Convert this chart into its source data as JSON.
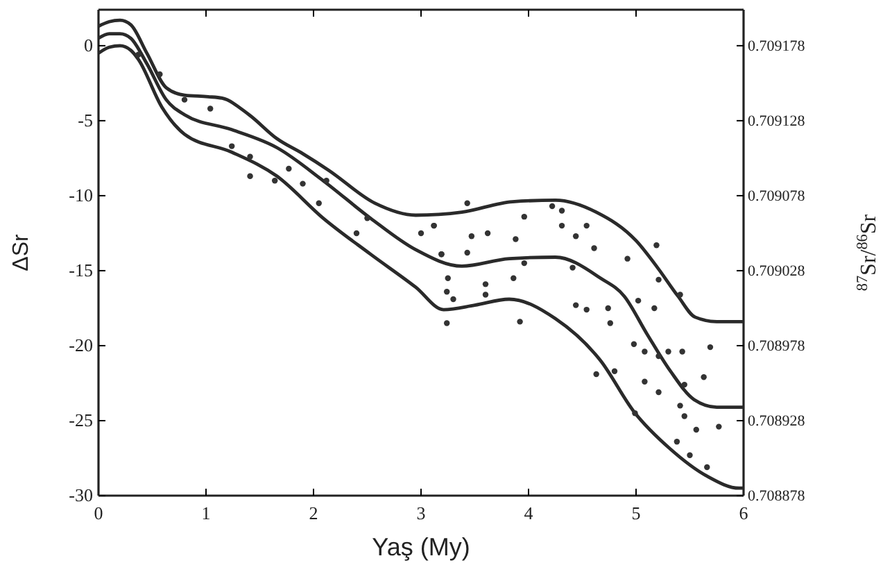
{
  "chart_data": {
    "type": "line",
    "xlabel": "Yaş (My)",
    "ylabel": "ΔSr",
    "y2label": "$^{87}$Sr/$^{86}$Sr",
    "xlim": [
      0,
      6
    ],
    "xticks": [
      0,
      1,
      2,
      3,
      4,
      5,
      6
    ],
    "ylim": [
      -30,
      2.4
    ],
    "yticks": [
      -30,
      -25,
      -20,
      -15,
      -10,
      -5,
      0
    ],
    "y2lim": [
      0.708878,
      0.709202
    ],
    "y2ticks": [
      0.708878,
      0.708928,
      0.708978,
      0.709028,
      0.709078,
      0.709128,
      0.709178
    ],
    "grid": false,
    "line_style": "solid",
    "series": [
      {
        "color": "#2a2a2a",
        "x": [
          0,
          0.1,
          0.2,
          0.3,
          0.45,
          0.63,
          0.8,
          1.02,
          1.15,
          1.4,
          1.66,
          1.9,
          2.14,
          2.57,
          2.95,
          3.38,
          3.85,
          4.25,
          4.63,
          5.0,
          5.2,
          5.39,
          5.55,
          5.75,
          6
        ],
        "values": [
          1.3,
          1.6,
          1.7,
          1.4,
          -0.5,
          -2.8,
          -3.3,
          -3.4,
          -3.5,
          -4.6,
          -6.2,
          -7.2,
          -8.3,
          -10.5,
          -11.3,
          -11.1,
          -10.4,
          -10.3,
          -11.1,
          -13,
          -14.8,
          -16.7,
          -18.1,
          -18.4,
          -18.4
        ]
      },
      {
        "color": "#2a2a2a",
        "x": [
          0,
          0.1,
          0.2,
          0.3,
          0.45,
          0.63,
          0.8,
          1.24,
          1.66,
          2.09,
          2.53,
          2.95,
          3.38,
          3.82,
          4.25,
          4.67,
          4.89,
          5.1,
          5.32,
          5.54,
          5.75,
          6
        ],
        "values": [
          0.5,
          0.8,
          0.8,
          0.5,
          -1.2,
          -3.6,
          -4.6,
          -5.6,
          -6.8,
          -9.0,
          -11.5,
          -13.6,
          -14.7,
          -14.2,
          -14.1,
          -15.5,
          -16.7,
          -19.2,
          -21.7,
          -23.6,
          -24.1,
          -24.1
        ]
      },
      {
        "color": "#2a2a2a",
        "x": [
          0,
          0.1,
          0.2,
          0.3,
          0.37,
          0.59,
          0.8,
          1.24,
          1.66,
          2.09,
          2.53,
          2.95,
          3.21,
          3.5,
          3.82,
          4.25,
          4.67,
          4.98,
          5.32,
          5.66,
          5.96,
          6
        ],
        "values": [
          -0.5,
          -0.1,
          0,
          -0.3,
          -0.9,
          -4.1,
          -5.9,
          -7.1,
          -8.7,
          -11.5,
          -13.9,
          -16.1,
          -17.6,
          -17.3,
          -16.9,
          -18.2,
          -21.0,
          -24.4,
          -26.9,
          -28.7,
          -29.5,
          -29.5
        ]
      },
      {
        "type": "scatter",
        "marker": "circle",
        "color": "#333333",
        "x": [
          0.37,
          0.57,
          0.8,
          1.04,
          1.24,
          1.41,
          1.41,
          1.64,
          1.77,
          1.9,
          2.05,
          2.12,
          2.4,
          2.5,
          3.0,
          3.12,
          3.19,
          3.43,
          3.12,
          3.47,
          3.62,
          3.88,
          3.96,
          4.22,
          4.31,
          4.31,
          4.44,
          4.54,
          3.19,
          3.43,
          3.96,
          4.61,
          4.92,
          5.19,
          3.25,
          3.6,
          3.6,
          3.86,
          4.41,
          5.21,
          5.41,
          3.24,
          3.3,
          3.24,
          3.92,
          4.44,
          4.54,
          4.76,
          4.74,
          5.02,
          5.17,
          4.98,
          5.08,
          5.21,
          5.3,
          5.43,
          5.69,
          4.63,
          4.8,
          5.08,
          5.21,
          5.45,
          5.63,
          5.41,
          5.45,
          5.56,
          5.77,
          5.38,
          5.5,
          5.66,
          4.99
        ],
        "values": [
          -0.6,
          -1.9,
          -3.6,
          -4.2,
          -6.7,
          -7.4,
          -8.7,
          -9.0,
          -8.2,
          -9.2,
          -10.5,
          -9.0,
          -12.5,
          -11.5,
          -12.5,
          -12.0,
          -13.9,
          -10.5,
          -12.0,
          -12.7,
          -12.5,
          -12.9,
          -11.4,
          -10.7,
          -11.0,
          -12.0,
          -12.7,
          -12.0,
          -13.9,
          -13.8,
          -14.5,
          -13.5,
          -14.2,
          -13.3,
          -15.5,
          -15.9,
          -16.6,
          -15.5,
          -14.8,
          -15.6,
          -16.6,
          -16.4,
          -16.9,
          -18.5,
          -18.4,
          -17.3,
          -17.6,
          -18.5,
          -17.5,
          -17.0,
          -17.5,
          -19.9,
          -20.4,
          -20.7,
          -20.4,
          -20.4,
          -20.1,
          -21.9,
          -21.7,
          -22.4,
          -23.1,
          -22.6,
          -22.1,
          -24.0,
          -24.7,
          -25.6,
          -25.4,
          -26.4,
          -27.3,
          -28.1,
          -24.5
        ]
      }
    ]
  }
}
